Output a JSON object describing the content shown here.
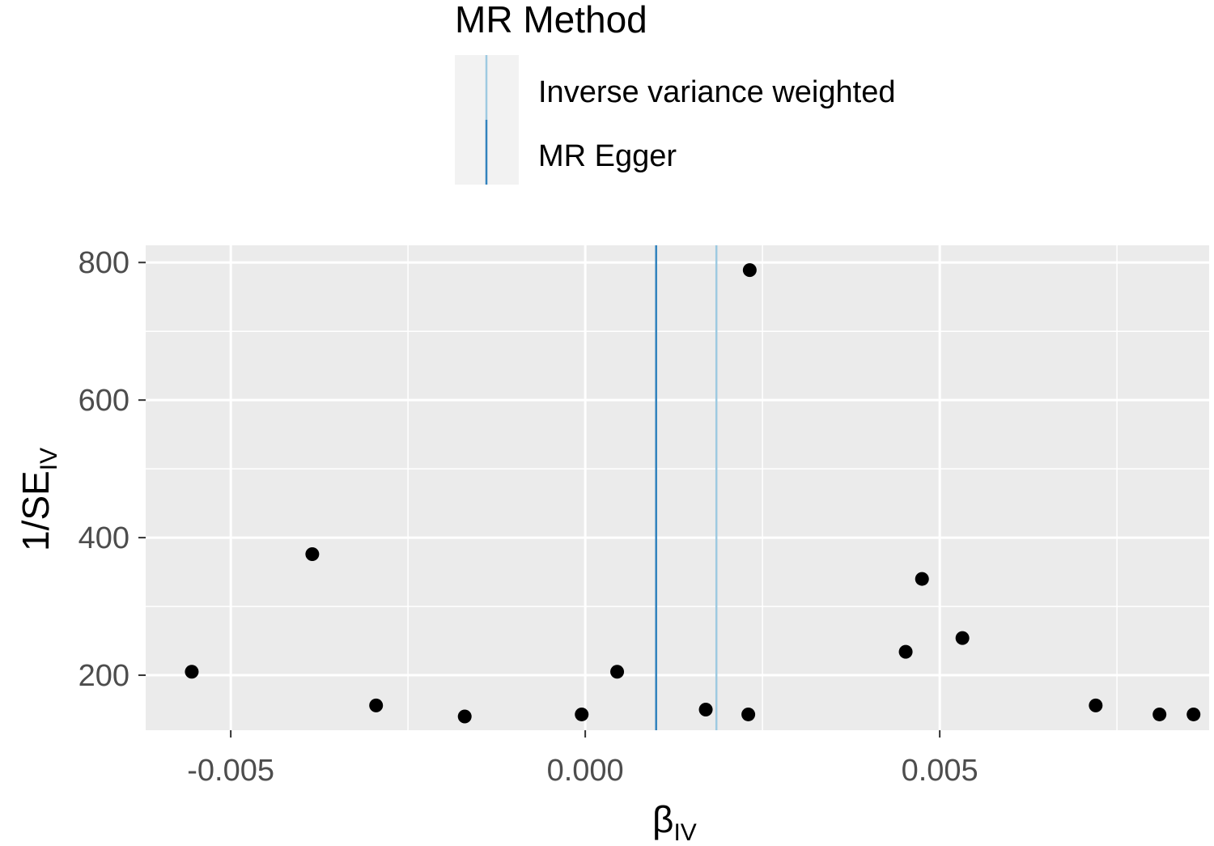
{
  "chart_data": {
    "type": "scatter",
    "title": "",
    "xlabel": {
      "main": "β",
      "sub": "IV"
    },
    "ylabel": {
      "prefix": "1",
      "slash": "/",
      "main": "SE",
      "sub": "IV"
    },
    "xlim": [
      -0.0062,
      0.0088
    ],
    "ylim": [
      120,
      825
    ],
    "x_ticks": [
      -0.005,
      0.0,
      0.005
    ],
    "x_tick_labels": [
      "-0.005",
      "0.000",
      "0.005"
    ],
    "y_ticks": [
      200,
      400,
      600,
      800
    ],
    "y_tick_labels": [
      "200",
      "400",
      "600",
      "800"
    ],
    "grid": true,
    "legend": {
      "title": "MR Method",
      "position": "top",
      "entries": [
        {
          "label": "Inverse variance weighted",
          "color": "#9ecae1"
        },
        {
          "label": "MR Egger",
          "color": "#3182bd"
        }
      ]
    },
    "method_lines": [
      {
        "name": "Inverse variance weighted",
        "x": 0.00185,
        "color": "#9ecae1"
      },
      {
        "name": "MR Egger",
        "x": 0.001,
        "color": "#3182bd"
      }
    ],
    "points": [
      {
        "x": -0.00555,
        "y": 205
      },
      {
        "x": -0.00385,
        "y": 376
      },
      {
        "x": -0.00295,
        "y": 156
      },
      {
        "x": -0.0017,
        "y": 140
      },
      {
        "x": -5e-05,
        "y": 143
      },
      {
        "x": 0.00045,
        "y": 205
      },
      {
        "x": 0.0017,
        "y": 150
      },
      {
        "x": 0.0023,
        "y": 143
      },
      {
        "x": 0.00232,
        "y": 789
      },
      {
        "x": 0.00452,
        "y": 234
      },
      {
        "x": 0.00475,
        "y": 340
      },
      {
        "x": 0.00532,
        "y": 254
      },
      {
        "x": 0.0072,
        "y": 156
      },
      {
        "x": 0.0081,
        "y": 143
      },
      {
        "x": 0.00858,
        "y": 143
      }
    ],
    "colors": {
      "panel_bg": "#ebebeb",
      "grid": "#ffffff",
      "point": "#000000",
      "legend_key_bg": "#f2f2f2"
    }
  }
}
